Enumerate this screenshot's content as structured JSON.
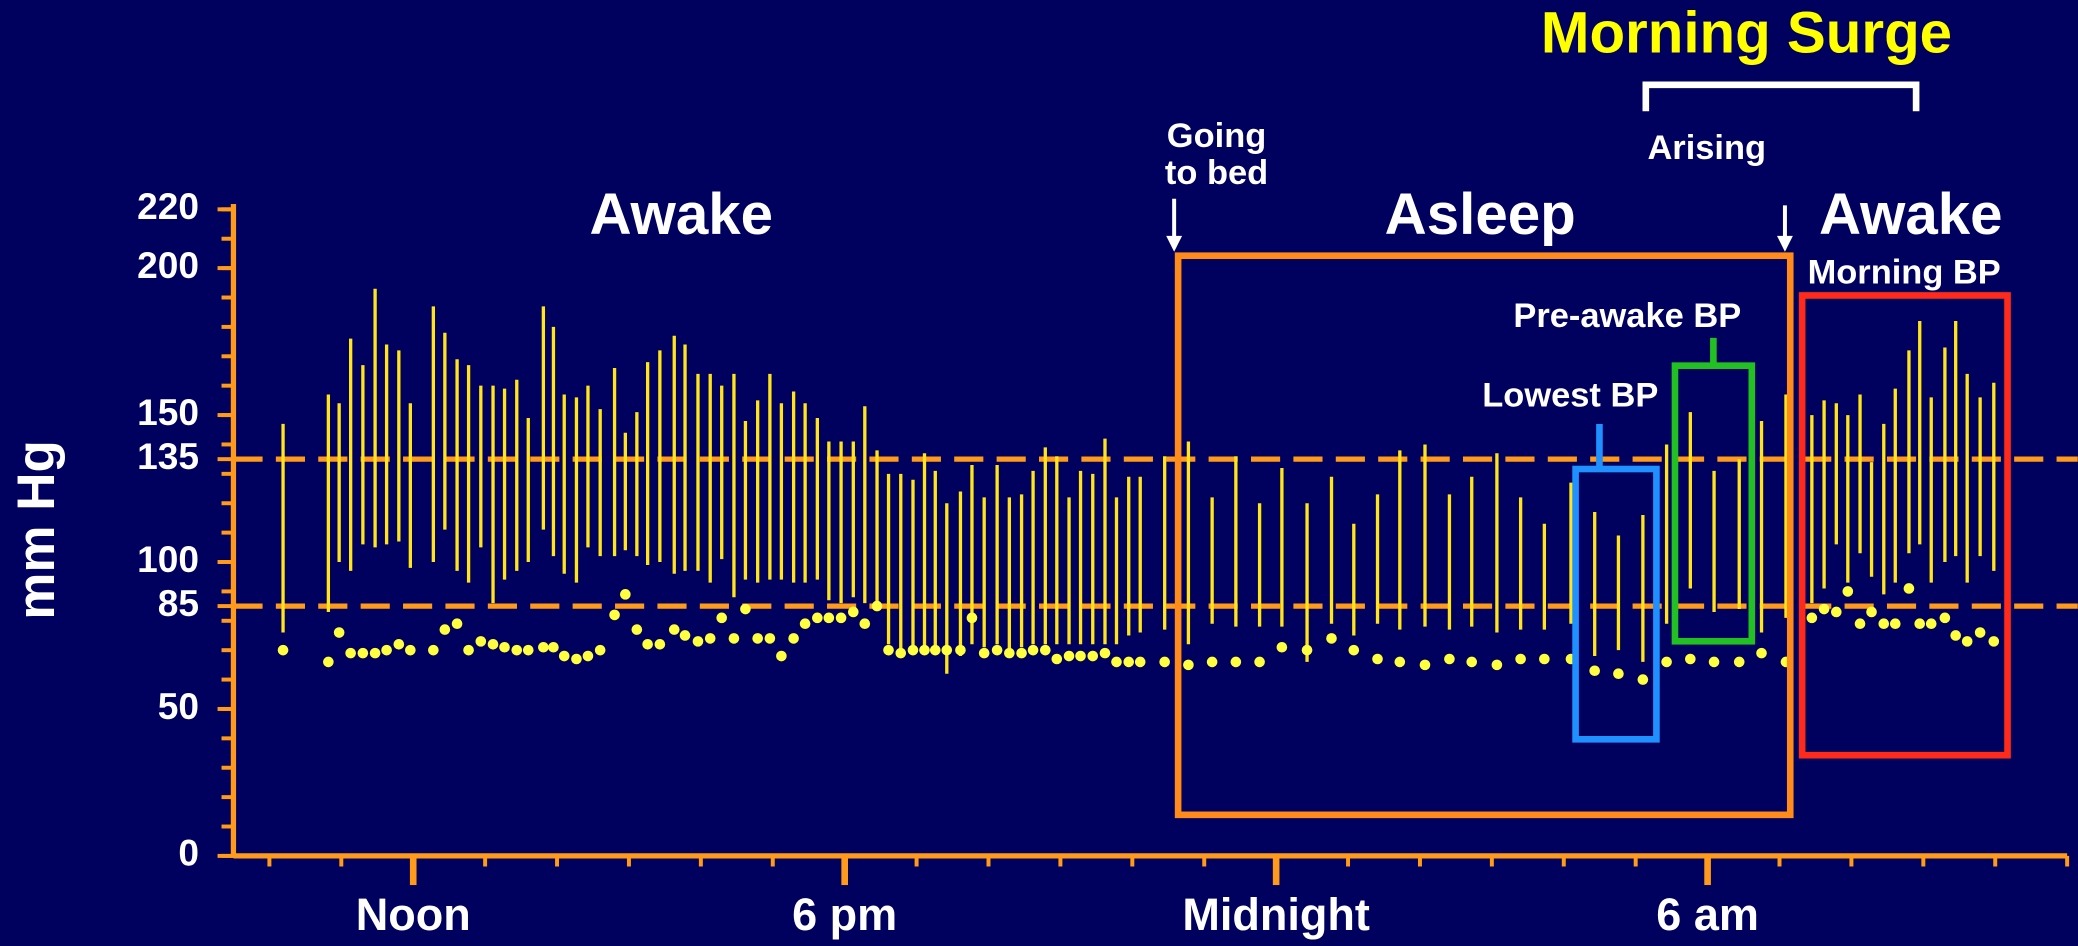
{
  "chart_data": {
    "type": "range-dot",
    "y_label": "mm Hg",
    "xlim": [
      9.5,
      35
    ],
    "xticks": [
      {
        "value": 12,
        "label": "Noon"
      },
      {
        "value": 18,
        "label": "6 pm"
      },
      {
        "value": 24,
        "label": "Midnight"
      },
      {
        "value": 30,
        "label": "6 am"
      }
    ],
    "xticks_minor": [
      10,
      11,
      12,
      13,
      14,
      15,
      16,
      17,
      18,
      19,
      20,
      21,
      22,
      23,
      24,
      25,
      26,
      27,
      28,
      29,
      30,
      31,
      32,
      33,
      34,
      35
    ],
    "ylim": [
      0,
      220
    ],
    "yticks": [
      0,
      50,
      85,
      100,
      135,
      150,
      200,
      220
    ],
    "yticks_minor": [
      0,
      10,
      20,
      30,
      40,
      50,
      60,
      70,
      80,
      90,
      100,
      110,
      120,
      130,
      140,
      150,
      160,
      170,
      180,
      190,
      200,
      210,
      220
    ],
    "reference_lines": [
      135,
      85
    ],
    "reference_color": "#ff9a1a",
    "axis_color": "#ff9a1a",
    "line_color": "#ffe51a",
    "dot_color": "#ffff40",
    "annotations": {
      "title": "Morning Surge",
      "awake_left": "Awake",
      "asleep": "Asleep",
      "awake_right": "Awake",
      "going_to_bed": [
        "Going",
        "to bed"
      ],
      "arising": "Arising",
      "morning_bp": "Morning BP",
      "pre_awake_bp": "Pre-awake BP",
      "lowest_bp": "Lowest BP"
    },
    "x": [
      10.19,
      10.82,
      10.97,
      11.13,
      11.3,
      11.47,
      11.63,
      11.8,
      11.96,
      12.28,
      12.44,
      12.61,
      12.77,
      12.94,
      13.11,
      13.27,
      13.44,
      13.6,
      13.81,
      13.95,
      14.1,
      14.27,
      14.43,
      14.6,
      14.8,
      14.95,
      15.11,
      15.26,
      15.43,
      15.63,
      15.78,
      15.96,
      16.13,
      16.29,
      16.46,
      16.62,
      16.79,
      16.96,
      17.12,
      17.29,
      17.45,
      17.62,
      17.78,
      17.95,
      18.12,
      18.28,
      18.45,
      18.61,
      18.78,
      18.95,
      19.11,
      19.26,
      19.42,
      19.61,
      19.77,
      19.94,
      20.12,
      20.29,
      20.46,
      20.62,
      20.79,
      20.95,
      21.12,
      21.28,
      21.45,
      21.62,
      21.78,
      21.95,
      22.11,
      22.45,
      22.78,
      23.11,
      23.44,
      23.77,
      24.08,
      24.43,
      24.77,
      25.08,
      25.41,
      25.72,
      26.07,
      26.41,
      26.72,
      27.07,
      27.4,
      27.73,
      28.1,
      28.43,
      28.76,
      29.1,
      29.43,
      29.76,
      30.09,
      30.44,
      30.75,
      31.09,
      31.45,
      31.62,
      31.79,
      31.95,
      32.12,
      32.28,
      32.45,
      32.61,
      32.8,
      32.95,
      33.11,
      33.3,
      33.45,
      33.61,
      33.79,
      33.98
    ],
    "top": [
      147,
      157,
      154,
      176,
      167,
      193,
      174,
      172,
      154,
      187,
      178,
      169,
      167,
      160,
      160,
      159,
      162,
      149,
      187,
      180,
      157,
      156,
      160,
      152,
      166,
      144,
      151,
      168,
      172,
      177,
      174,
      164,
      164,
      160,
      164,
      148,
      155,
      164,
      154,
      158,
      154,
      149,
      141,
      141,
      141,
      153,
      138,
      130,
      130,
      128,
      137,
      131,
      120,
      124,
      133,
      122,
      133,
      122,
      123,
      131,
      139,
      136,
      122,
      131,
      130,
      142,
      122,
      129,
      129,
      136,
      141,
      122,
      136,
      120,
      132,
      120,
      129,
      113,
      123,
      138,
      140,
      123,
      129,
      137,
      122,
      113,
      127,
      117,
      109,
      116,
      140,
      151,
      131,
      135,
      148,
      157,
      150,
      155,
      154,
      150,
      157,
      134,
      147,
      159,
      172,
      182,
      156,
      173,
      182,
      164,
      156,
      161
    ],
    "bottom": [
      76,
      83,
      100,
      97,
      106,
      105,
      106,
      107,
      98,
      100,
      111,
      97,
      93,
      105,
      86,
      94,
      97,
      100,
      111,
      102,
      96,
      93,
      105,
      102,
      102,
      104,
      102,
      99,
      100,
      96,
      97,
      97,
      93,
      101,
      88,
      94,
      93,
      94,
      94,
      93,
      93,
      94,
      87,
      86,
      88,
      86,
      85,
      72,
      70,
      70,
      70,
      69,
      62,
      68,
      72,
      71,
      72,
      70,
      71,
      72,
      72,
      72,
      72,
      72,
      72,
      72,
      72,
      75,
      76,
      77,
      72,
      79,
      78,
      78,
      78,
      66,
      79,
      75,
      79,
      77,
      78,
      77,
      78,
      76,
      77,
      77,
      79,
      68,
      70,
      66,
      79,
      91,
      83,
      84,
      76,
      81,
      86,
      91,
      106,
      93,
      103,
      95,
      89,
      93,
      103,
      106,
      93,
      100,
      102,
      93,
      102,
      97
    ],
    "dots": [
      70,
      66,
      76,
      69,
      69,
      69,
      70,
      72,
      70,
      70,
      77,
      79,
      70,
      73,
      72,
      71,
      70,
      70,
      71,
      71,
      68,
      67,
      68,
      70,
      82,
      89,
      77,
      72,
      72,
      77,
      75,
      73,
      74,
      81,
      74,
      84,
      74,
      74,
      68,
      74,
      79,
      81,
      81,
      81,
      83,
      79,
      85,
      70,
      69,
      70,
      70,
      70,
      70,
      70,
      81,
      69,
      70,
      69,
      69,
      70,
      70,
      67,
      68,
      68,
      68,
      69,
      66,
      66,
      66,
      66,
      65,
      66,
      66,
      66,
      71,
      70,
      74,
      70,
      67,
      66,
      65,
      67,
      66,
      65,
      67,
      67,
      67,
      63,
      62,
      60,
      66,
      67,
      66,
      66,
      69,
      66,
      81,
      84,
      83,
      90,
      79,
      83,
      79,
      79,
      91,
      79,
      79,
      81,
      75,
      73,
      76,
      73
    ]
  }
}
